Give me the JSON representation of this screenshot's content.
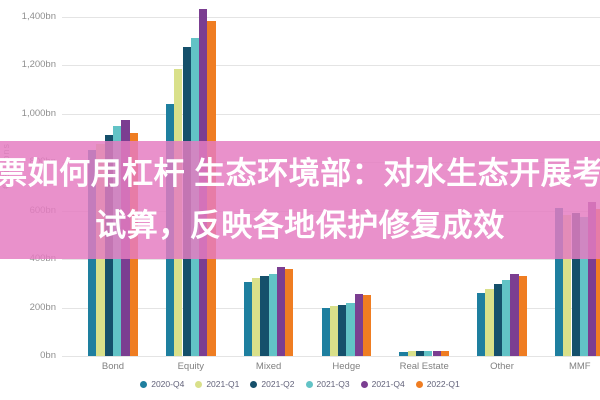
{
  "banner": {
    "line1": "股票如何用杠杆 生态环境部：对水生态开展考核",
    "line2": "试算，反映各地保护修复成效",
    "background_color": "#E57CC1",
    "text_color": "#FFFFFF"
  },
  "chart_data": {
    "type": "bar",
    "title": "",
    "xlabel": "",
    "ylabel": "€ Billions",
    "ylim": [
      0,
      1400
    ],
    "grid": true,
    "legend_position": "bottom",
    "yticks": [
      {
        "value": 0,
        "label": "0bn"
      },
      {
        "value": 200,
        "label": "200bn"
      },
      {
        "value": 400,
        "label": "400bn"
      },
      {
        "value": 600,
        "label": "600bn"
      },
      {
        "value": 800,
        "label": "800bn"
      },
      {
        "value": 1000,
        "label": "1,000bn"
      },
      {
        "value": 1200,
        "label": "1,200bn"
      },
      {
        "value": 1400,
        "label": "1,400bn"
      }
    ],
    "categories": [
      "Bond",
      "Equity",
      "Mixed",
      "Hedge",
      "Real Estate",
      "Other",
      "MMF"
    ],
    "series": [
      {
        "name": "2020-Q4",
        "color": "#1E7F9F",
        "values": [
          850,
          1040,
          305,
          200,
          18,
          260,
          610
        ]
      },
      {
        "name": "2021-Q1",
        "color": "#D9E08A",
        "values": [
          875,
          1185,
          320,
          205,
          19,
          275,
          580
        ]
      },
      {
        "name": "2021-Q2",
        "color": "#15506B",
        "values": [
          910,
          1275,
          330,
          210,
          20,
          295,
          590
        ]
      },
      {
        "name": "2021-Q3",
        "color": "#62C3C6",
        "values": [
          950,
          1310,
          340,
          220,
          20,
          315,
          575
        ]
      },
      {
        "name": "2021-Q4",
        "color": "#7B3E91",
        "values": [
          975,
          1430,
          365,
          255,
          21,
          340,
          635
        ]
      },
      {
        "name": "2022-Q1",
        "color": "#EF7D22",
        "values": [
          920,
          1380,
          360,
          250,
          21,
          330,
          605
        ]
      }
    ]
  }
}
